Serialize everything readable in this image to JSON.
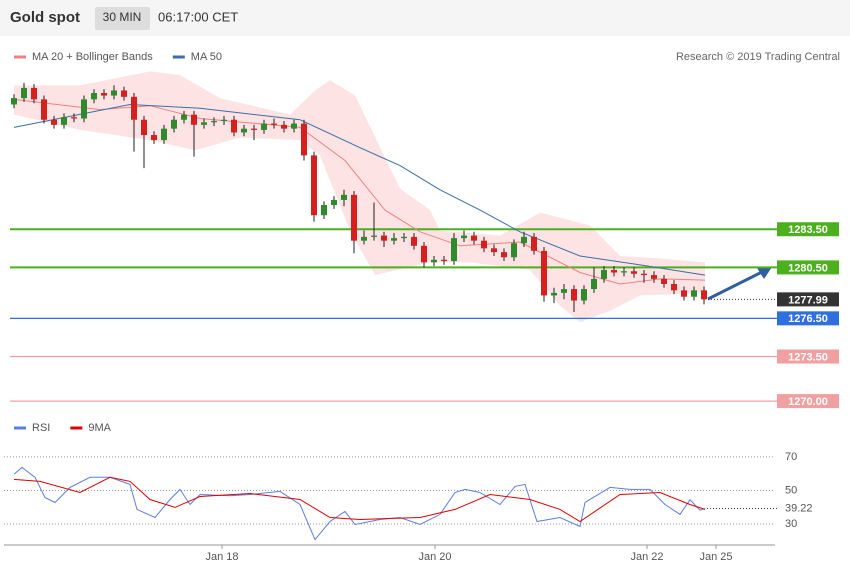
{
  "header": {
    "title": "Gold spot",
    "timeframe": "30 MIN",
    "time": "06:17:00 CET"
  },
  "chart_data": [
    {
      "type": "candlestick",
      "source": "Research © 2019 Trading Central",
      "xlim": [
        -1,
        76
      ],
      "ylim": [
        1269.3,
        1296.4
      ],
      "up_color": "#2d8a2d",
      "down_color": "#d62020",
      "open": [
        1293.3,
        1293.8,
        1294.6,
        1293.7,
        1292.1,
        1291.7,
        1292.3,
        1292.2,
        1293.7,
        1294.2,
        1294.0,
        1294.4,
        1293.9,
        1292.1,
        1290.9,
        1290.5,
        1291.4,
        1292.1,
        1292.5,
        1291.7,
        1291.9,
        1292.0,
        1292.1,
        1291.1,
        1291.4,
        1291.3,
        1291.8,
        1291.7,
        1291.4,
        1291.8,
        1289.3,
        1284.6,
        1285.4,
        1285.8,
        1286.2,
        1282.6,
        1282.9,
        1283.0,
        1282.6,
        1282.8,
        1282.9,
        1282.2,
        1280.9,
        1281.1,
        1281.0,
        1282.8,
        1283.0,
        1282.6,
        1282.0,
        1281.7,
        1281.3,
        1282.4,
        1282.9,
        1281.8,
        1278.3,
        1278.5,
        1278.8,
        1277.9,
        1278.8,
        1279.6,
        1280.3,
        1280.1,
        1280.2,
        1280.0,
        1279.9,
        1279.6,
        1279.2,
        1278.7,
        1278.2,
        1278.7
      ],
      "high": [
        1294.1,
        1295.0,
        1294.9,
        1294.0,
        1292.4,
        1292.6,
        1292.6,
        1294.0,
        1294.5,
        1294.5,
        1294.8,
        1294.7,
        1294.2,
        1292.4,
        1291.2,
        1291.7,
        1292.4,
        1292.8,
        1292.8,
        1292.2,
        1292.3,
        1292.4,
        1292.4,
        1291.7,
        1291.7,
        1292.1,
        1292.2,
        1292.0,
        1292.1,
        1292.1,
        1289.6,
        1285.7,
        1286.1,
        1286.6,
        1286.5,
        1283.4,
        1285.6,
        1283.3,
        1283.2,
        1283.2,
        1283.2,
        1282.5,
        1281.4,
        1281.4,
        1283.2,
        1283.4,
        1283.3,
        1282.9,
        1282.3,
        1282.0,
        1282.7,
        1283.3,
        1283.2,
        1282.1,
        1278.9,
        1279.2,
        1279.1,
        1279.1,
        1280.5,
        1280.6,
        1280.6,
        1280.5,
        1280.5,
        1280.3,
        1280.2,
        1279.9,
        1279.5,
        1279.0,
        1279.0,
        1279.0
      ],
      "low": [
        1293.0,
        1293.5,
        1293.4,
        1291.8,
        1291.4,
        1291.4,
        1291.9,
        1291.9,
        1293.4,
        1293.7,
        1293.7,
        1293.6,
        1289.6,
        1288.3,
        1290.2,
        1290.2,
        1291.1,
        1291.8,
        1289.2,
        1291.4,
        1291.6,
        1291.7,
        1290.8,
        1290.8,
        1290.5,
        1291.0,
        1291.4,
        1291.1,
        1291.1,
        1288.9,
        1284.1,
        1284.3,
        1285.1,
        1285.3,
        1281.6,
        1282.3,
        1282.6,
        1282.1,
        1282.3,
        1282.5,
        1281.9,
        1280.5,
        1280.6,
        1280.7,
        1280.7,
        1282.5,
        1282.3,
        1281.7,
        1281.4,
        1281.0,
        1281.0,
        1282.1,
        1281.5,
        1277.8,
        1277.7,
        1278.0,
        1277.0,
        1277.6,
        1278.5,
        1279.3,
        1279.8,
        1279.8,
        1279.7,
        1279.3,
        1279.3,
        1278.9,
        1278.4,
        1277.9,
        1277.9,
        1277.6
      ],
      "close": [
        1293.8,
        1294.6,
        1293.7,
        1292.1,
        1291.7,
        1292.3,
        1292.2,
        1293.7,
        1294.2,
        1294.0,
        1294.4,
        1293.9,
        1292.1,
        1290.9,
        1290.5,
        1291.4,
        1292.1,
        1292.5,
        1291.7,
        1291.9,
        1292.0,
        1292.1,
        1291.1,
        1291.4,
        1291.3,
        1291.8,
        1291.7,
        1291.4,
        1291.8,
        1289.3,
        1284.6,
        1285.4,
        1285.8,
        1286.2,
        1282.6,
        1282.9,
        1283.0,
        1282.6,
        1282.8,
        1282.9,
        1282.2,
        1280.9,
        1281.1,
        1281.0,
        1282.8,
        1283.0,
        1282.6,
        1282.0,
        1281.7,
        1281.3,
        1282.4,
        1282.9,
        1281.8,
        1278.3,
        1278.5,
        1278.8,
        1277.9,
        1278.8,
        1279.6,
        1280.3,
        1280.1,
        1280.2,
        1280.0,
        1279.9,
        1279.6,
        1279.2,
        1278.7,
        1278.2,
        1278.7,
        1277.99
      ],
      "series": [
        {
          "name": "MA 20 + Bollinger Bands",
          "color": "#f08080",
          "x": [
            0,
            8.6,
            13.6,
            18.6,
            28.6,
            33.1,
            37.1,
            40.6,
            44.6,
            50.6,
            56.6,
            60.6,
            64.6,
            69.1
          ],
          "values": [
            1293.7,
            1292.9,
            1293.2,
            1292.2,
            1291.5,
            1288.9,
            1285.0,
            1283.3,
            1282.2,
            1282.5,
            1280.1,
            1279.2,
            1279.6,
            1279.5
          ]
        },
        {
          "name": "MA 50",
          "color": "#3a6ea5",
          "x": [
            0,
            11.6,
            18.6,
            28.6,
            34.6,
            38.6,
            42.6,
            46.6,
            50.6,
            56.6,
            62.6,
            69.1
          ],
          "values": [
            1291.5,
            1293.3,
            1293.0,
            1292.1,
            1289.9,
            1288.5,
            1286.6,
            1285.0,
            1283.3,
            1281.4,
            1280.7,
            1279.9
          ]
        }
      ],
      "bands": {
        "color": "#fddcdc",
        "upper": {
          "x": [
            0,
            6.6,
            13.6,
            16.6,
            20.6,
            27.6,
            30.1,
            31.6,
            34.1,
            38.6,
            41.6,
            42.6,
            48.6,
            52.6,
            57.6,
            60.6,
            64.6,
            69.1
          ],
          "values": [
            1294.8,
            1294.8,
            1295.9,
            1295.6,
            1293.8,
            1292.5,
            1294.4,
            1295.2,
            1294.0,
            1286.7,
            1285.0,
            1283.4,
            1283.0,
            1284.8,
            1283.8,
            1281.4,
            1281.2,
            1280.9
          ]
        },
        "lower": {
          "x": [
            0,
            6.6,
            13.6,
            18.1,
            22.6,
            28.6,
            30.6,
            33.6,
            36.1,
            41.6,
            45.6,
            51.6,
            54.6,
            56.6,
            59.6,
            62.6,
            69.1
          ],
          "values": [
            1292.5,
            1291.3,
            1290.5,
            1289.7,
            1290.7,
            1290.5,
            1289.3,
            1283.4,
            1279.9,
            1280.9,
            1280.9,
            1280.3,
            1277.5,
            1276.2,
            1277.1,
            1278.3,
            1278.5
          ]
        }
      },
      "levels": [
        {
          "value": 1283.5,
          "label": "1283.50",
          "color": "#4caf1e"
        },
        {
          "value": 1280.5,
          "label": "1280.50",
          "color": "#4caf1e"
        },
        {
          "value": 1276.5,
          "label": "1276.50",
          "color": "#2f6fe0"
        },
        {
          "value": 1273.5,
          "label": "1273.50",
          "color": "#f0a0a0"
        },
        {
          "value": 1270.0,
          "label": "1270.00",
          "color": "#f0a0a0"
        }
      ]
    },
    {
      "type": "line",
      "xlim": [
        -1,
        76
      ],
      "ylim": [
        17.5,
        86
      ],
      "yticks": [
        30,
        50,
        70
      ],
      "xticks": [
        {
          "value": 20.8,
          "label": "Jan 18"
        },
        {
          "value": 42.1,
          "label": "Jan 20"
        },
        {
          "value": 63.3,
          "label": "Jan 22"
        },
        {
          "value": 70.2,
          "label": "Jan 25"
        }
      ],
      "series": [
        {
          "name": "RSI",
          "color": "#5b7fe0",
          "x": [
            0,
            0.8,
            2.1,
            3.1,
            4.1,
            5.6,
            7.6,
            9.6,
            11.6,
            12.3,
            14.1,
            15.6,
            16.6,
            17.6,
            18.6,
            21.6,
            23.6,
            26.6,
            28.6,
            30.1,
            31.6,
            33.1,
            34.1,
            36.6,
            38.6,
            40.6,
            42.6,
            44.1,
            45.1,
            46.6,
            48.6,
            50.1,
            51.1,
            52.3,
            54.6,
            56.6,
            57.1,
            59.6,
            61.6,
            63.6,
            65.1,
            66.6,
            67.6,
            68.6,
            69.1
          ],
          "values": [
            59.6,
            63.7,
            57.8,
            45.8,
            42.8,
            51.8,
            57.8,
            57.8,
            53.6,
            38.7,
            33.9,
            44.6,
            50.6,
            41.6,
            47.6,
            46.8,
            47.6,
            49.4,
            41.6,
            20.7,
            31.5,
            37.5,
            29.7,
            32.7,
            33.9,
            29.7,
            35.7,
            48.8,
            50.6,
            48.8,
            41.6,
            52.4,
            53.6,
            31.5,
            33.9,
            28.5,
            42.8,
            51.8,
            50.6,
            50.6,
            41.6,
            35.7,
            44.4,
            38.2,
            39.22
          ]
        },
        {
          "name": "9MA",
          "color": "#e00000",
          "x": [
            0,
            2.6,
            6.6,
            9.6,
            11.6,
            13.6,
            16.1,
            18.6,
            23.6,
            28.6,
            31.6,
            34.6,
            40.6,
            44.1,
            47.6,
            51.6,
            54.6,
            56.6,
            60.6,
            64.6,
            67.6,
            69.1
          ],
          "values": [
            56.6,
            55.4,
            48.8,
            57.8,
            55.4,
            44.6,
            39.9,
            46.4,
            48.2,
            44.6,
            33.9,
            32.7,
            33.9,
            38.7,
            47.6,
            44.6,
            38.7,
            31.5,
            47.6,
            48.8,
            41.6,
            38.7
          ]
        }
      ]
    }
  ]
}
